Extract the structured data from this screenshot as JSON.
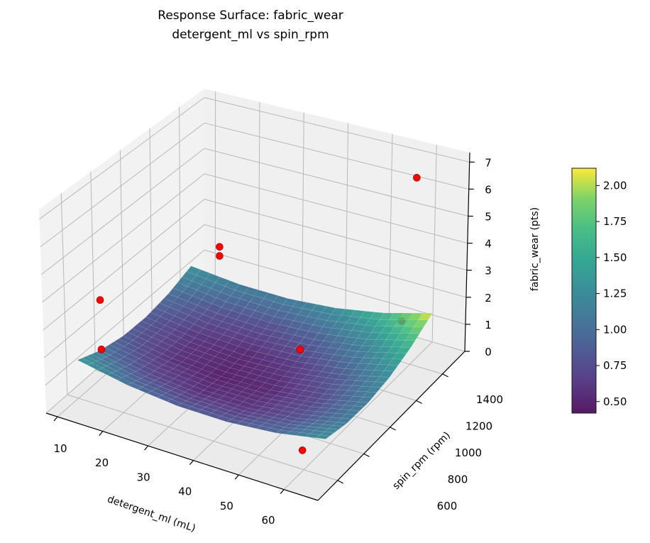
{
  "chart_data": {
    "type": "surface",
    "title": "Response Surface: fabric_wear",
    "subtitle": "detergent_ml vs spin_rpm",
    "xlabel": "detergent_ml (mL)",
    "ylabel": "spin_rpm (rpm)",
    "zlabel": "fabric_wear (pts)",
    "xlim": [
      7.5,
      67.5
    ],
    "ylim": [
      450,
      1570
    ],
    "zlim": [
      0,
      7.35
    ],
    "xticks": [
      10,
      20,
      30,
      40,
      50,
      60
    ],
    "yticks": [
      600,
      800,
      1000,
      1200,
      1400
    ],
    "zticks": [
      0,
      1,
      2,
      3,
      4,
      5,
      6,
      7
    ],
    "grid": true,
    "surface": {
      "cmap": "viridis",
      "x": [
        10,
        21,
        32,
        43,
        54,
        65
      ],
      "y": [
        600,
        760,
        920,
        1080,
        1240,
        1400
      ],
      "z": [
        [
          1.39,
          1.04,
          0.85,
          0.83,
          0.98,
          1.3
        ],
        [
          1.04,
          0.72,
          0.57,
          0.59,
          0.77,
          1.13
        ],
        [
          0.85,
          0.57,
          0.46,
          0.51,
          0.73,
          1.12
        ],
        [
          0.83,
          0.59,
          0.51,
          0.6,
          0.86,
          1.28
        ],
        [
          0.98,
          0.77,
          0.73,
          0.86,
          1.15,
          1.61
        ],
        [
          1.3,
          1.13,
          1.12,
          1.28,
          1.61,
          2.11
        ]
      ]
    },
    "points": {
      "color": "#ff0000",
      "values": [
        {
          "x": 61,
          "y": 1400,
          "z": 6.9
        },
        {
          "x": 16.5,
          "y": 1400,
          "z": 2.35
        },
        {
          "x": 16.5,
          "y": 1400,
          "z": 2.0
        },
        {
          "x": 13,
          "y": 675,
          "z": 3.4
        },
        {
          "x": 13,
          "y": 675,
          "z": 1.6
        },
        {
          "x": 47,
          "y": 1010,
          "z": 1.75
        },
        {
          "x": 58,
          "y": 1400,
          "z": 1.5
        },
        {
          "x": 61,
          "y": 560,
          "z": 0.9
        }
      ]
    },
    "colorbar": {
      "vmin": 0.42,
      "vmax": 2.12,
      "ticks": [
        0.5,
        0.75,
        1.0,
        1.25,
        1.5,
        1.75,
        2.0
      ],
      "tick_labels": [
        "0.50",
        "0.75",
        "1.00",
        "1.25",
        "1.50",
        "1.75",
        "2.00"
      ]
    }
  }
}
